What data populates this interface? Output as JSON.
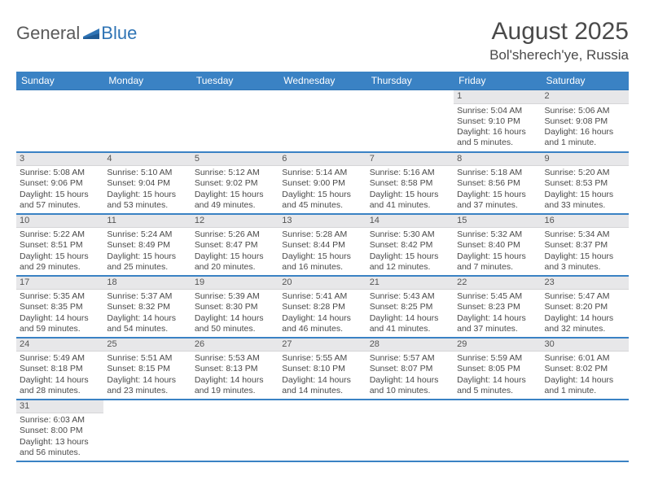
{
  "logo": {
    "main": "General",
    "accent": "Blue"
  },
  "title": {
    "month_year": "August 2025",
    "location": "Bol'sherech'ye, Russia"
  },
  "colors": {
    "header_bg": "#3a82c4",
    "header_text": "#ffffff",
    "row_border": "#3a82c4",
    "daynum_bg": "#e7e7e9",
    "text": "#4a4a4a",
    "logo_blue": "#2f74b5"
  },
  "day_headers": [
    "Sunday",
    "Monday",
    "Tuesday",
    "Wednesday",
    "Thursday",
    "Friday",
    "Saturday"
  ],
  "weeks": [
    [
      null,
      null,
      null,
      null,
      null,
      {
        "n": "1",
        "sunrise": "5:04 AM",
        "sunset": "9:10 PM",
        "day_h": "16",
        "day_m": "5 minutes"
      },
      {
        "n": "2",
        "sunrise": "5:06 AM",
        "sunset": "9:08 PM",
        "day_h": "16",
        "day_m": "1 minute"
      }
    ],
    [
      {
        "n": "3",
        "sunrise": "5:08 AM",
        "sunset": "9:06 PM",
        "day_h": "15",
        "day_m": "57 minutes"
      },
      {
        "n": "4",
        "sunrise": "5:10 AM",
        "sunset": "9:04 PM",
        "day_h": "15",
        "day_m": "53 minutes"
      },
      {
        "n": "5",
        "sunrise": "5:12 AM",
        "sunset": "9:02 PM",
        "day_h": "15",
        "day_m": "49 minutes"
      },
      {
        "n": "6",
        "sunrise": "5:14 AM",
        "sunset": "9:00 PM",
        "day_h": "15",
        "day_m": "45 minutes"
      },
      {
        "n": "7",
        "sunrise": "5:16 AM",
        "sunset": "8:58 PM",
        "day_h": "15",
        "day_m": "41 minutes"
      },
      {
        "n": "8",
        "sunrise": "5:18 AM",
        "sunset": "8:56 PM",
        "day_h": "15",
        "day_m": "37 minutes"
      },
      {
        "n": "9",
        "sunrise": "5:20 AM",
        "sunset": "8:53 PM",
        "day_h": "15",
        "day_m": "33 minutes"
      }
    ],
    [
      {
        "n": "10",
        "sunrise": "5:22 AM",
        "sunset": "8:51 PM",
        "day_h": "15",
        "day_m": "29 minutes"
      },
      {
        "n": "11",
        "sunrise": "5:24 AM",
        "sunset": "8:49 PM",
        "day_h": "15",
        "day_m": "25 minutes"
      },
      {
        "n": "12",
        "sunrise": "5:26 AM",
        "sunset": "8:47 PM",
        "day_h": "15",
        "day_m": "20 minutes"
      },
      {
        "n": "13",
        "sunrise": "5:28 AM",
        "sunset": "8:44 PM",
        "day_h": "15",
        "day_m": "16 minutes"
      },
      {
        "n": "14",
        "sunrise": "5:30 AM",
        "sunset": "8:42 PM",
        "day_h": "15",
        "day_m": "12 minutes"
      },
      {
        "n": "15",
        "sunrise": "5:32 AM",
        "sunset": "8:40 PM",
        "day_h": "15",
        "day_m": "7 minutes"
      },
      {
        "n": "16",
        "sunrise": "5:34 AM",
        "sunset": "8:37 PM",
        "day_h": "15",
        "day_m": "3 minutes"
      }
    ],
    [
      {
        "n": "17",
        "sunrise": "5:35 AM",
        "sunset": "8:35 PM",
        "day_h": "14",
        "day_m": "59 minutes"
      },
      {
        "n": "18",
        "sunrise": "5:37 AM",
        "sunset": "8:32 PM",
        "day_h": "14",
        "day_m": "54 minutes"
      },
      {
        "n": "19",
        "sunrise": "5:39 AM",
        "sunset": "8:30 PM",
        "day_h": "14",
        "day_m": "50 minutes"
      },
      {
        "n": "20",
        "sunrise": "5:41 AM",
        "sunset": "8:28 PM",
        "day_h": "14",
        "day_m": "46 minutes"
      },
      {
        "n": "21",
        "sunrise": "5:43 AM",
        "sunset": "8:25 PM",
        "day_h": "14",
        "day_m": "41 minutes"
      },
      {
        "n": "22",
        "sunrise": "5:45 AM",
        "sunset": "8:23 PM",
        "day_h": "14",
        "day_m": "37 minutes"
      },
      {
        "n": "23",
        "sunrise": "5:47 AM",
        "sunset": "8:20 PM",
        "day_h": "14",
        "day_m": "32 minutes"
      }
    ],
    [
      {
        "n": "24",
        "sunrise": "5:49 AM",
        "sunset": "8:18 PM",
        "day_h": "14",
        "day_m": "28 minutes"
      },
      {
        "n": "25",
        "sunrise": "5:51 AM",
        "sunset": "8:15 PM",
        "day_h": "14",
        "day_m": "23 minutes"
      },
      {
        "n": "26",
        "sunrise": "5:53 AM",
        "sunset": "8:13 PM",
        "day_h": "14",
        "day_m": "19 minutes"
      },
      {
        "n": "27",
        "sunrise": "5:55 AM",
        "sunset": "8:10 PM",
        "day_h": "14",
        "day_m": "14 minutes"
      },
      {
        "n": "28",
        "sunrise": "5:57 AM",
        "sunset": "8:07 PM",
        "day_h": "14",
        "day_m": "10 minutes"
      },
      {
        "n": "29",
        "sunrise": "5:59 AM",
        "sunset": "8:05 PM",
        "day_h": "14",
        "day_m": "5 minutes"
      },
      {
        "n": "30",
        "sunrise": "6:01 AM",
        "sunset": "8:02 PM",
        "day_h": "14",
        "day_m": "1 minute"
      }
    ],
    [
      {
        "n": "31",
        "sunrise": "6:03 AM",
        "sunset": "8:00 PM",
        "day_h": "13",
        "day_m": "56 minutes"
      },
      null,
      null,
      null,
      null,
      null,
      null
    ]
  ]
}
